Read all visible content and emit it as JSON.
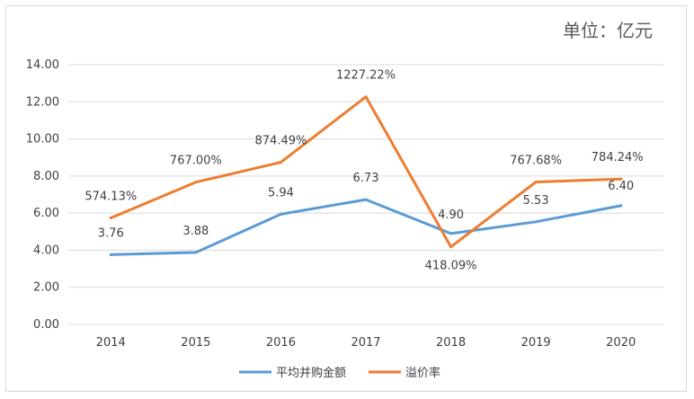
{
  "unit_label": "单位：亿元",
  "colors": {
    "series1": "#5b9bd5",
    "series2": "#ed7d31",
    "grid": "#d9d9d9",
    "text": "#404040"
  },
  "chart_data": {
    "type": "line",
    "x": [
      "2014",
      "2015",
      "2016",
      "2017",
      "2018",
      "2019",
      "2020"
    ],
    "ylim": [
      0,
      14
    ],
    "yticks": [
      "0.00",
      "2.00",
      "4.00",
      "6.00",
      "8.00",
      "10.00",
      "12.00",
      "14.00"
    ],
    "grid": true,
    "legend_position": "bottom",
    "series": [
      {
        "name": "平均并购金额",
        "values": [
          3.76,
          3.88,
          5.94,
          6.73,
          4.9,
          5.53,
          6.4
        ],
        "labels": [
          "3.76",
          "3.88",
          "5.94",
          "6.73",
          "4.90",
          "5.53",
          "6.40"
        ]
      },
      {
        "name": "溢价率",
        "values": [
          5.74,
          7.67,
          8.74,
          12.27,
          4.18,
          7.68,
          7.84
        ],
        "labels": [
          "574.13%",
          "767.00%",
          "874.49%",
          "1227.22%",
          "418.09%",
          "767.68%",
          "784.24%"
        ]
      }
    ]
  }
}
